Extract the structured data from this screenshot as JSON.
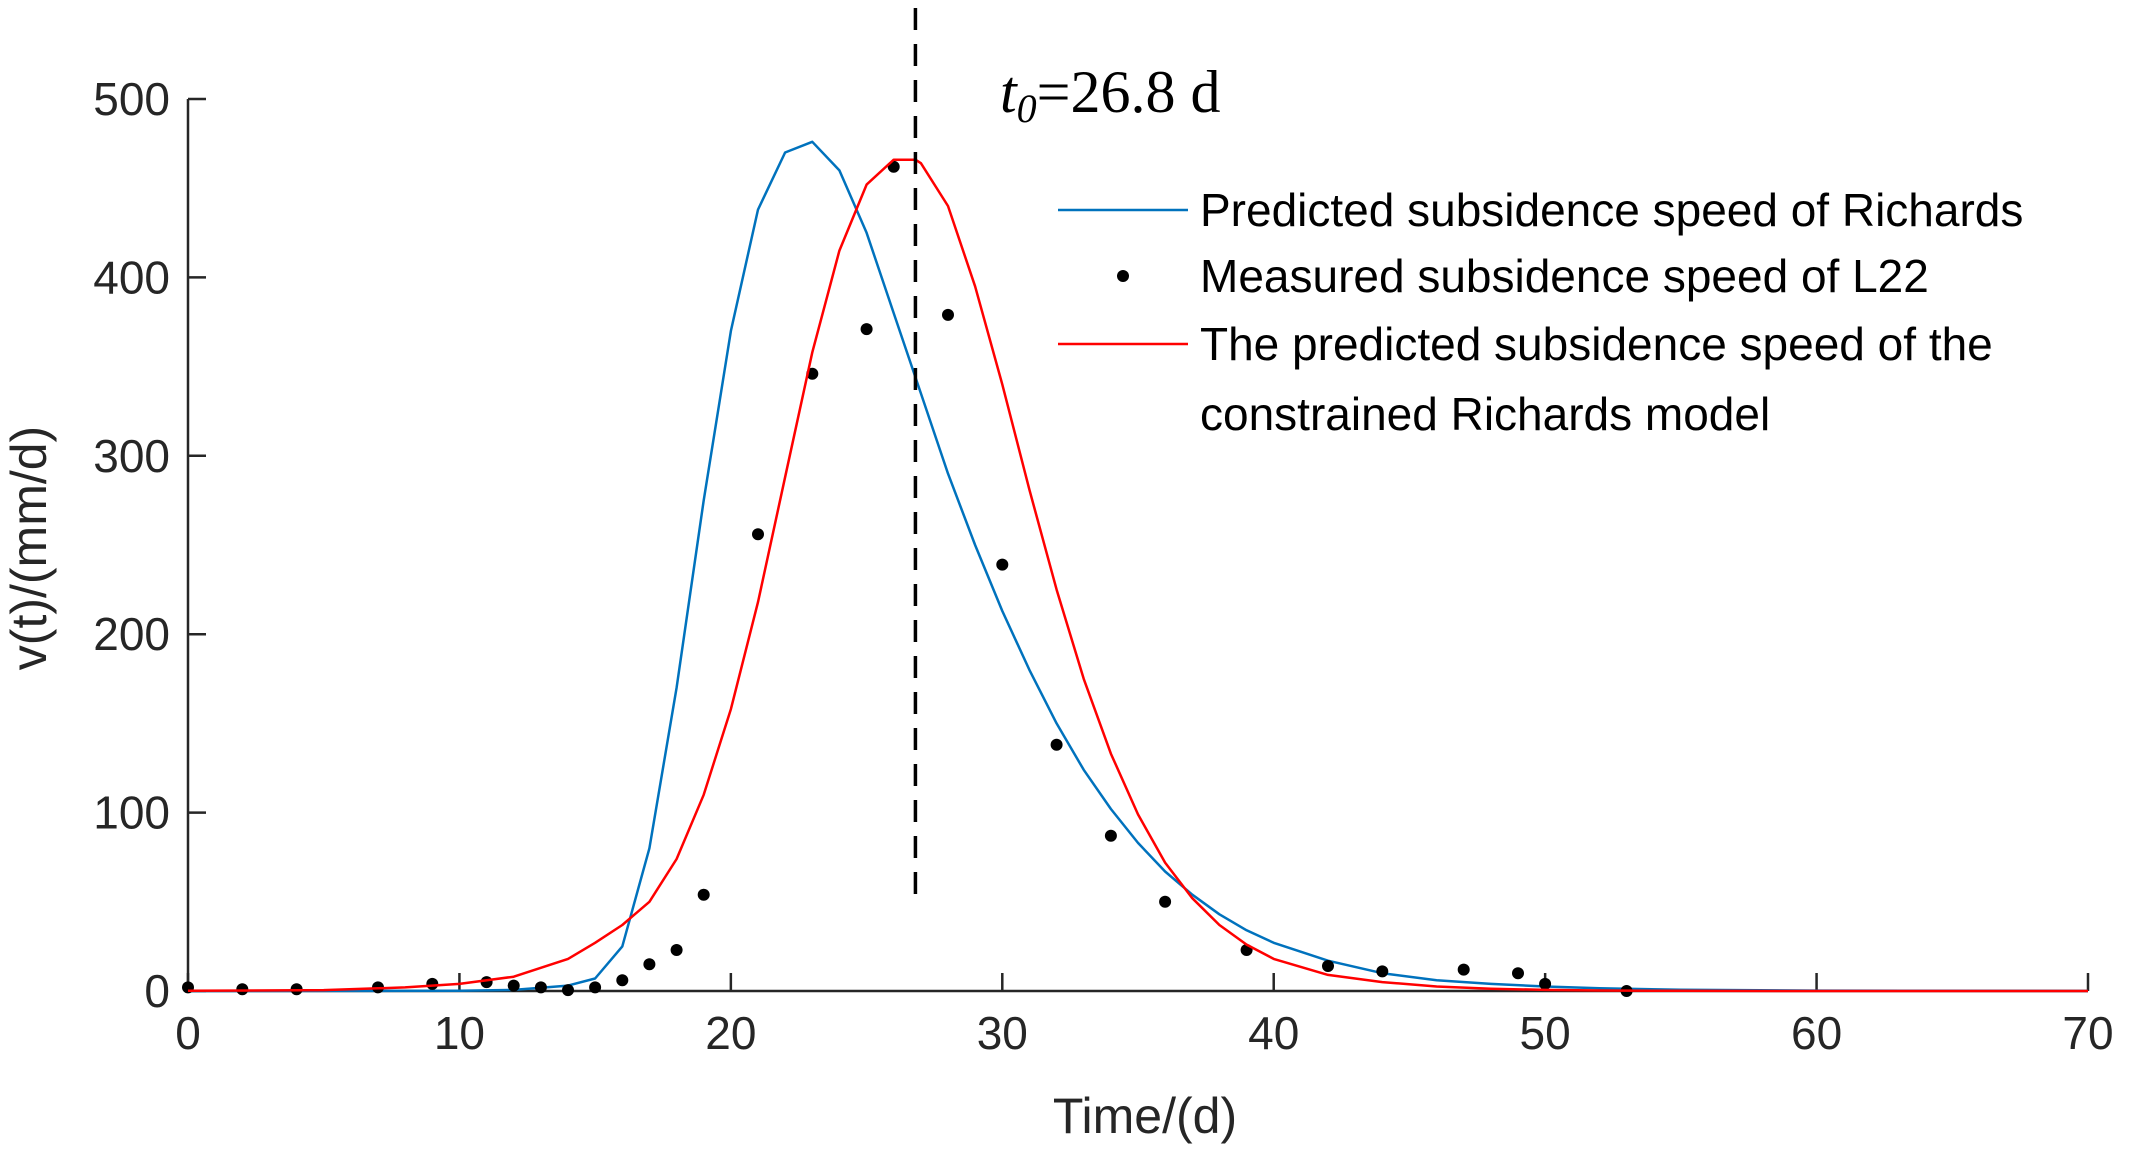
{
  "chart_data": {
    "type": "line",
    "title": "",
    "xlabel": "Time/(d)",
    "ylabel": "v(t)/(mm/d)",
    "xlim": [
      0,
      70
    ],
    "ylim": [
      0,
      500
    ],
    "xticks": [
      0,
      10,
      20,
      30,
      40,
      50,
      60,
      70
    ],
    "yticks": [
      0,
      100,
      200,
      300,
      400,
      500
    ],
    "xtick_labels": [
      "0",
      "10",
      "20",
      "30",
      "40",
      "50",
      "60",
      "70"
    ],
    "ytick_labels": [
      "0",
      "100",
      "200",
      "300",
      "400",
      "500"
    ],
    "grid": false,
    "legend_position": "top-right",
    "series": [
      {
        "name": "Predicted subsidence speed of Richards",
        "kind": "line",
        "color": "#0072BD",
        "x": [
          0,
          10,
          12,
          14,
          15,
          16,
          17,
          18,
          19,
          20,
          21,
          22,
          23,
          24,
          25,
          26,
          27,
          28,
          29,
          30,
          31,
          32,
          33,
          34,
          35,
          36,
          37,
          38,
          39,
          40,
          42,
          44,
          46,
          48,
          50,
          52,
          55,
          60,
          70
        ],
        "y": [
          0,
          0.1,
          0.6,
          3,
          7,
          25,
          80,
          170,
          275,
          370,
          438,
          470,
          476,
          460,
          425,
          380,
          335,
          290,
          250,
          213,
          180,
          150,
          124,
          102,
          83,
          67,
          54,
          43,
          34,
          27,
          17,
          10,
          6,
          4,
          2.5,
          1.5,
          0.7,
          0.2,
          0
        ]
      },
      {
        "name": "Measured subsidence speed of L22",
        "kind": "scatter",
        "color": "#000000",
        "x": [
          0,
          2,
          4,
          7,
          9,
          11,
          12,
          13,
          14,
          15,
          16,
          17,
          18,
          19,
          21,
          23,
          25,
          26,
          28,
          30,
          32,
          34,
          36,
          39,
          42,
          44,
          47,
          49,
          50,
          53
        ],
        "y": [
          2,
          1,
          1,
          2,
          4,
          5,
          3,
          2,
          0.5,
          2,
          6,
          15,
          23,
          54,
          256,
          346,
          371,
          462,
          379,
          239,
          138,
          87,
          50,
          23,
          14,
          11,
          12,
          10,
          4,
          0
        ]
      },
      {
        "name": "The predicted subsidence speed of the constrained Richards model",
        "kind": "line",
        "color": "#FF0000",
        "x": [
          0,
          5,
          8,
          10,
          12,
          14,
          15,
          16,
          17,
          18,
          19,
          20,
          21,
          22,
          23,
          24,
          25,
          26,
          26.8,
          27,
          28,
          29,
          30,
          31,
          32,
          33,
          34,
          35,
          36,
          37,
          38,
          39,
          40,
          42,
          44,
          46,
          48,
          50,
          52,
          55,
          60,
          70
        ],
        "y": [
          0.1,
          0.5,
          2,
          4,
          8,
          18,
          27,
          37,
          50,
          74,
          110,
          158,
          218,
          288,
          358,
          415,
          452,
          466,
          466,
          464,
          440,
          395,
          340,
          281,
          225,
          175,
          133,
          99,
          72,
          52,
          37,
          26,
          18,
          9,
          5,
          2.5,
          1.3,
          0.6,
          0.3,
          0.1,
          0,
          0
        ]
      }
    ],
    "vline": {
      "x": 26.8,
      "style": "dashed",
      "color": "#000000"
    },
    "annotation": {
      "prefix": "t",
      "subscript": "0",
      "suffix": "=26.8 d"
    },
    "legend_lines": [
      [
        "Predicted subsidence speed of Richards"
      ],
      [
        "Measured subsidence speed of L22"
      ],
      [
        "The predicted subsidence speed of the",
        "constrained Richards model"
      ]
    ]
  }
}
